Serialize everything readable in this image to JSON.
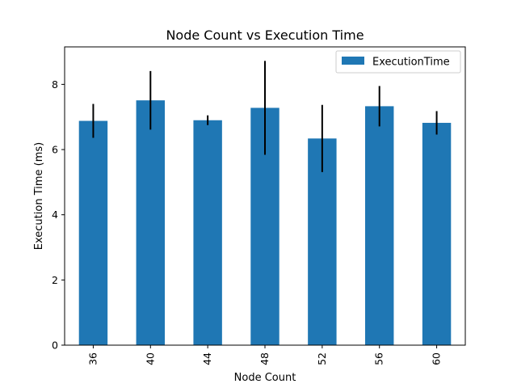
{
  "chart_data": {
    "type": "bar",
    "title": "Node Count vs Execution Time",
    "xlabel": "Node Count",
    "ylabel": "Execution Time (ms)",
    "categories": [
      "36",
      "40",
      "44",
      "48",
      "52",
      "56",
      "60"
    ],
    "series": [
      {
        "name": "ExecutionTime",
        "values": [
          6.88,
          7.51,
          6.9,
          7.28,
          6.34,
          7.33,
          6.82
        ],
        "errors": [
          0.52,
          0.9,
          0.15,
          1.44,
          1.03,
          0.62,
          0.36
        ],
        "color": "#1f77b4"
      }
    ],
    "ylim": [
      0,
      9.15
    ],
    "yticks": [
      0,
      2,
      4,
      6,
      8
    ],
    "grid": false,
    "legend": "top-right",
    "error_bar_color": "#000000"
  }
}
